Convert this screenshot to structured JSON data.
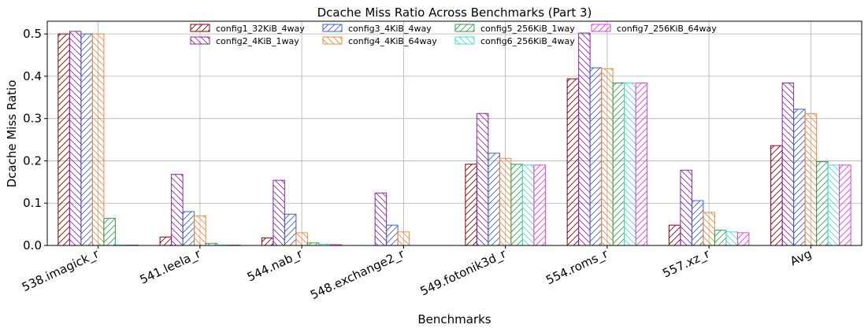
{
  "chart_data": {
    "type": "bar",
    "title": "Dcache Miss Ratio Across Benchmarks (Part 3)",
    "xlabel": "Benchmarks",
    "ylabel": "Dcache Miss Ratio",
    "ylim": [
      0,
      0.53
    ],
    "yticks": [
      "0.0",
      "0.1",
      "0.2",
      "0.3",
      "0.4",
      "0.5"
    ],
    "grid": true,
    "legend_position": "top",
    "categories": [
      "538.imagick_r",
      "541.leela_r",
      "544.nab_r",
      "548.exchange2_r",
      "549.fotonik3d_r",
      "554.roms_r",
      "557.xz_r",
      "Avg"
    ],
    "series": [
      {
        "name": "config1_32KiB_4way",
        "color": "#800000",
        "hatch": "fwd",
        "values": [
          0.5,
          0.02,
          0.018,
          0.0,
          0.192,
          0.394,
          0.048,
          0.236
        ]
      },
      {
        "name": "config2_4KiB_1way",
        "color": "#8e24aa",
        "hatch": "back",
        "values": [
          0.506,
          0.168,
          0.154,
          0.124,
          0.312,
          0.502,
          0.178,
          0.384
        ]
      },
      {
        "name": "config3_4KiB_4way",
        "color": "#3a5fcd",
        "hatch": "fwd",
        "values": [
          0.5,
          0.08,
          0.074,
          0.048,
          0.218,
          0.42,
          0.106,
          0.322
        ]
      },
      {
        "name": "config4_4KiB_64way",
        "color": "#f0883e",
        "hatch": "back",
        "values": [
          0.5,
          0.07,
          0.03,
          0.032,
          0.206,
          0.418,
          0.078,
          0.312
        ]
      },
      {
        "name": "config5_256KiB_1way",
        "color": "#2ea043",
        "hatch": "fwd",
        "values": [
          0.064,
          0.005,
          0.006,
          0.0,
          0.192,
          0.384,
          0.036,
          0.198
        ]
      },
      {
        "name": "config6_256KiB_4way",
        "color": "#40e0d0",
        "hatch": "back",
        "values": [
          0.001,
          0.001,
          0.003,
          0.0,
          0.19,
          0.384,
          0.032,
          0.19
        ]
      },
      {
        "name": "config7_256KiB_64way",
        "color": "#e040d8",
        "hatch": "fwd",
        "values": [
          0.001,
          0.001,
          0.002,
          0.0,
          0.19,
          0.384,
          0.03,
          0.19
        ]
      }
    ]
  }
}
